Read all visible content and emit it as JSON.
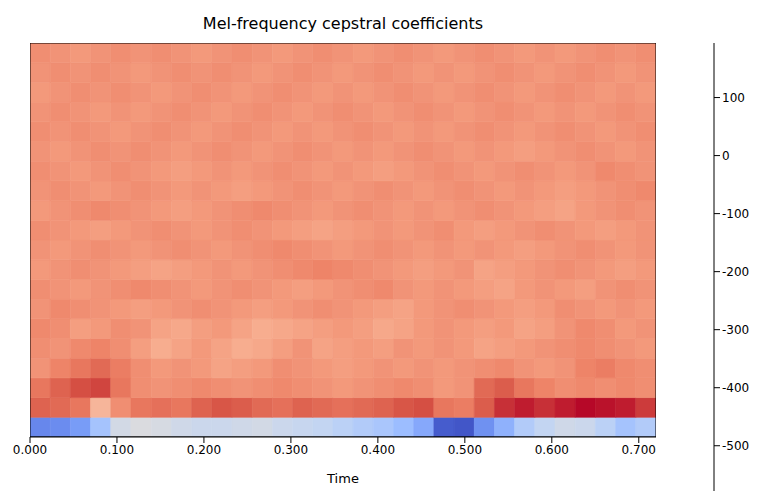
{
  "chart_data": {
    "type": "heatmap",
    "title": "Mel-frequency cepstral coefficients",
    "x_label": "Time",
    "x": [
      0,
      0.0232,
      0.0464,
      0.0697,
      0.0929,
      0.1161,
      0.1393,
      0.1625,
      0.1858,
      0.209,
      0.2322,
      0.2554,
      0.2786,
      0.3019,
      0.3251,
      0.3483,
      0.3715,
      0.3947,
      0.418,
      0.4412,
      0.4644,
      0.4876,
      0.5108,
      0.5341,
      0.5573,
      0.5805,
      0.6037,
      0.6269,
      0.6502,
      0.6734,
      0.6966
    ],
    "xlim": [
      0,
      0.7198
    ],
    "xticks": [
      {
        "value": 0,
        "label": "0.000"
      },
      {
        "value": 0.1,
        "label": "0.100"
      },
      {
        "value": 0.2,
        "label": "0.200"
      },
      {
        "value": 0.3,
        "label": "0.300"
      },
      {
        "value": 0.4,
        "label": "0.400"
      },
      {
        "value": 0.5,
        "label": "0.500"
      },
      {
        "value": 0.6,
        "label": "0.600"
      },
      {
        "value": 0.7,
        "label": "0.700"
      }
    ],
    "tick_labels": "x",
    "cells": [
      [
        -470,
        -460,
        -430,
        -330,
        -220,
        -200,
        -210,
        -230,
        -240,
        -240,
        -230,
        -220,
        -240,
        -250,
        -260,
        -280,
        -300,
        -320,
        -350,
        -400,
        -550,
        -560,
        -450,
        -380,
        -300,
        -260,
        -230,
        -240,
        -280,
        -330,
        -300
      ],
      [
        90,
        80,
        60,
        -60,
        20,
        60,
        70,
        60,
        90,
        110,
        100,
        80,
        70,
        90,
        80,
        70,
        80,
        90,
        110,
        120,
        60,
        50,
        100,
        150,
        170,
        150,
        170,
        190,
        180,
        170,
        140
      ],
      [
        60,
        90,
        120,
        130,
        60,
        20,
        10,
        20,
        30,
        20,
        10,
        20,
        30,
        20,
        10,
        0,
        10,
        20,
        30,
        20,
        0,
        10,
        80,
        100,
        60,
        40,
        20,
        30,
        20,
        30,
        20
      ],
      [
        10,
        40,
        60,
        80,
        50,
        20,
        0,
        10,
        0,
        -20,
        -10,
        0,
        20,
        10,
        0,
        -10,
        0,
        10,
        0,
        10,
        0,
        10,
        20,
        30,
        10,
        0,
        10,
        40,
        50,
        30,
        20
      ],
      [
        20,
        10,
        30,
        40,
        20,
        -10,
        -40,
        -20,
        0,
        -20,
        -40,
        -30,
        -10,
        10,
        -20,
        -10,
        0,
        -10,
        10,
        0,
        10,
        0,
        -20,
        -10,
        0,
        10,
        20,
        30,
        20,
        10,
        0
      ],
      [
        30,
        20,
        -10,
        0,
        20,
        10,
        -20,
        -30,
        -10,
        0,
        -20,
        -40,
        -30,
        -20,
        -10,
        0,
        -10,
        -30,
        -20,
        0,
        10,
        0,
        -10,
        0,
        -20,
        -10,
        10,
        30,
        20,
        0,
        10
      ],
      [
        10,
        30,
        20,
        10,
        0,
        -10,
        0,
        10,
        20,
        10,
        0,
        -10,
        0,
        10,
        20,
        10,
        0,
        -10,
        -20,
        0,
        10,
        20,
        10,
        0,
        -10,
        0,
        20,
        10,
        0,
        10,
        0
      ],
      [
        20,
        10,
        0,
        10,
        20,
        30,
        20,
        10,
        0,
        10,
        20,
        10,
        0,
        -10,
        0,
        10,
        20,
        30,
        10,
        0,
        10,
        0,
        -10,
        -20,
        0,
        10,
        0,
        -10,
        10,
        20,
        10
      ],
      [
        0,
        10,
        20,
        10,
        0,
        -10,
        -20,
        -10,
        0,
        10,
        0,
        10,
        20,
        30,
        40,
        30,
        20,
        10,
        0,
        -10,
        0,
        10,
        -20,
        -10,
        0,
        10,
        20,
        10,
        0,
        -10,
        0
      ],
      [
        10,
        0,
        10,
        20,
        10,
        0,
        10,
        20,
        10,
        0,
        10,
        20,
        30,
        20,
        10,
        0,
        10,
        20,
        10,
        0,
        10,
        0,
        10,
        0,
        -10,
        0,
        10,
        20,
        10,
        0,
        10
      ],
      [
        20,
        10,
        0,
        -10,
        0,
        10,
        20,
        10,
        0,
        10,
        20,
        10,
        0,
        -10,
        -20,
        -10,
        0,
        10,
        0,
        10,
        20,
        0,
        -10,
        0,
        10,
        20,
        10,
        0,
        -10,
        0,
        10
      ],
      [
        0,
        10,
        20,
        30,
        20,
        10,
        0,
        -10,
        0,
        10,
        20,
        30,
        20,
        10,
        0,
        10,
        20,
        10,
        0,
        10,
        0,
        10,
        20,
        10,
        0,
        -10,
        -20,
        0,
        10,
        20,
        10
      ],
      [
        10,
        20,
        10,
        0,
        10,
        20,
        10,
        0,
        10,
        0,
        -10,
        0,
        10,
        20,
        10,
        0,
        10,
        20,
        10,
        0,
        10,
        20,
        10,
        0,
        10,
        0,
        -10,
        0,
        10,
        20,
        30
      ],
      [
        20,
        10,
        0,
        10,
        20,
        10,
        0,
        -10,
        0,
        10,
        0,
        10,
        20,
        10,
        0,
        10,
        0,
        -10,
        0,
        10,
        20,
        10,
        0,
        10,
        20,
        10,
        0,
        10,
        30,
        20,
        10
      ],
      [
        10,
        0,
        10,
        20,
        10,
        20,
        10,
        0,
        10,
        20,
        10,
        0,
        10,
        20,
        10,
        0,
        10,
        0,
        10,
        20,
        10,
        0,
        10,
        0,
        -10,
        0,
        10,
        20,
        10,
        0,
        10
      ],
      [
        20,
        10,
        20,
        10,
        0,
        10,
        20,
        10,
        0,
        10,
        20,
        10,
        0,
        10,
        0,
        10,
        20,
        10,
        0,
        10,
        0,
        10,
        20,
        10,
        0,
        10,
        20,
        10,
        0,
        10,
        20
      ],
      [
        10,
        20,
        10,
        0,
        10,
        0,
        10,
        20,
        10,
        0,
        10,
        20,
        10,
        0,
        10,
        20,
        10,
        0,
        10,
        20,
        10,
        0,
        10,
        20,
        10,
        0,
        10,
        0,
        10,
        20,
        10
      ],
      [
        0,
        10,
        20,
        10,
        20,
        10,
        0,
        10,
        20,
        10,
        0,
        10,
        20,
        10,
        0,
        10,
        0,
        10,
        20,
        10,
        0,
        10,
        20,
        10,
        0,
        10,
        20,
        10,
        0,
        10,
        0
      ],
      [
        10,
        20,
        10,
        20,
        10,
        0,
        10,
        20,
        10,
        20,
        10,
        0,
        10,
        20,
        10,
        0,
        10,
        20,
        10,
        0,
        10,
        0,
        10,
        20,
        10,
        0,
        10,
        20,
        10,
        0,
        10
      ],
      [
        20,
        10,
        0,
        10,
        20,
        10,
        20,
        10,
        0,
        10,
        20,
        10,
        0,
        10,
        20,
        10,
        0,
        10,
        20,
        10,
        0,
        10,
        20,
        10,
        0,
        10,
        0,
        10,
        20,
        10,
        20
      ]
    ],
    "colorbar": {
      "range": [
        -578,
        194
      ],
      "ticks": [
        100,
        0,
        -100,
        -200,
        -300,
        -400,
        -500
      ]
    }
  }
}
